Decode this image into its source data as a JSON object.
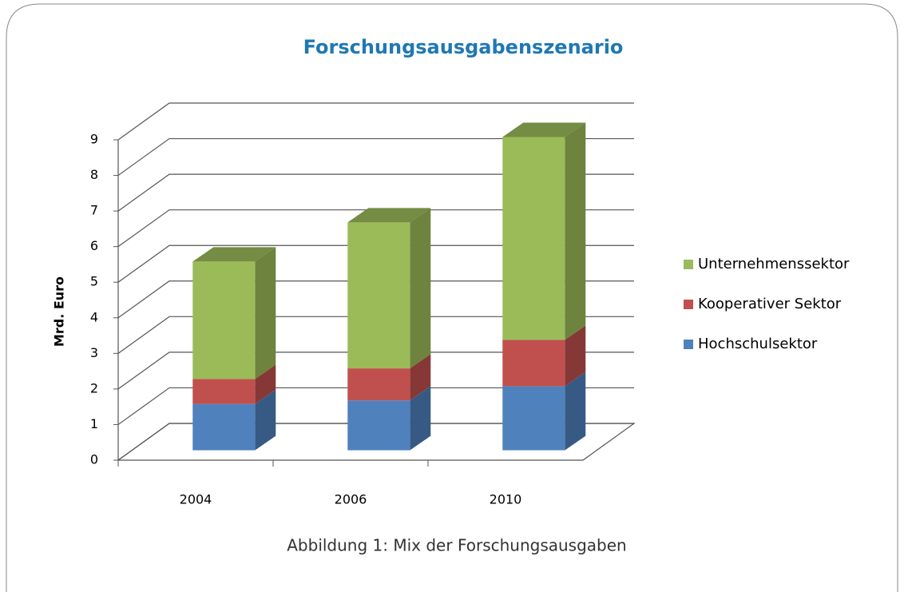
{
  "chart_data": {
    "type": "bar3d_stacked",
    "title": "Forschungsausgabenszenario",
    "y_label": "Mrd. Euro",
    "caption": "Abbildung 1: Mix der Forschungsausgaben",
    "categories": [
      "2004",
      "2006",
      "2010"
    ],
    "series": [
      {
        "name": "Hochschulsektor",
        "color": "#4f81bd",
        "values": [
          1.3,
          1.4,
          1.8
        ]
      },
      {
        "name": "Kooperativer Sektor",
        "color": "#c0504d",
        "values": [
          0.7,
          0.9,
          1.3
        ]
      },
      {
        "name": "Unternehmenssektor",
        "color": "#9bbb59",
        "values": [
          3.3,
          4.1,
          5.7
        ]
      }
    ],
    "ylim": [
      0,
      9
    ],
    "yticks": [
      0,
      1,
      2,
      3,
      4,
      5,
      6,
      7,
      8,
      9
    ],
    "grid": true,
    "legend": "right"
  }
}
